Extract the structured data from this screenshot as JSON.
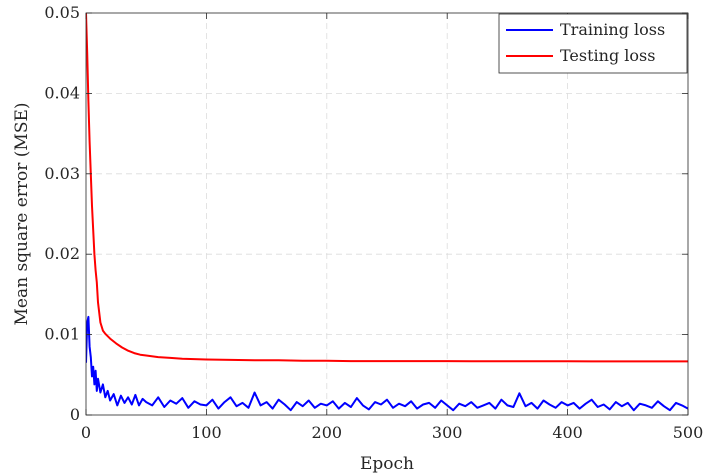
{
  "chart_data": {
    "type": "line",
    "title": "",
    "xlabel": "Epoch",
    "ylabel": "Mean square error (MSE)",
    "xlim": [
      0,
      500
    ],
    "ylim": [
      0,
      0.05
    ],
    "xticks": [
      0,
      100,
      200,
      300,
      400,
      500
    ],
    "xtick_labels": [
      "0",
      "100",
      "200",
      "300",
      "400",
      "500"
    ],
    "yticks": [
      0,
      0.01,
      0.02,
      0.03,
      0.04,
      0.05
    ],
    "ytick_labels": [
      "0",
      "0.01",
      "0.02",
      "0.03",
      "0.04",
      "0.05"
    ],
    "grid": true,
    "legend_position": "top-right",
    "series": [
      {
        "name": "Training loss",
        "color": "#0000ff",
        "x": [
          0,
          1,
          2,
          3,
          4,
          5,
          6,
          7,
          8,
          9,
          10,
          12,
          14,
          16,
          18,
          20,
          23,
          26,
          29,
          32,
          35,
          38,
          41,
          44,
          47,
          50,
          55,
          60,
          65,
          70,
          75,
          80,
          85,
          90,
          95,
          100,
          105,
          110,
          115,
          120,
          125,
          130,
          135,
          140,
          145,
          150,
          155,
          160,
          165,
          170,
          175,
          180,
          185,
          190,
          195,
          200,
          205,
          210,
          215,
          220,
          225,
          230,
          235,
          240,
          245,
          250,
          255,
          260,
          265,
          270,
          275,
          280,
          285,
          290,
          295,
          300,
          305,
          310,
          315,
          320,
          325,
          330,
          335,
          340,
          345,
          350,
          355,
          360,
          365,
          370,
          375,
          380,
          385,
          390,
          395,
          400,
          405,
          410,
          415,
          420,
          425,
          430,
          435,
          440,
          445,
          450,
          455,
          460,
          465,
          470,
          475,
          480,
          485,
          490,
          495,
          500
        ],
        "y": [
          0.0065,
          0.0115,
          0.0122,
          0.0085,
          0.0072,
          0.0048,
          0.006,
          0.0038,
          0.0055,
          0.003,
          0.0045,
          0.0028,
          0.0038,
          0.0022,
          0.003,
          0.0018,
          0.0026,
          0.0012,
          0.0024,
          0.0015,
          0.0022,
          0.0013,
          0.0025,
          0.0012,
          0.002,
          0.0016,
          0.0012,
          0.0022,
          0.001,
          0.0018,
          0.0014,
          0.0021,
          0.0009,
          0.0017,
          0.0013,
          0.0012,
          0.0019,
          0.0008,
          0.0016,
          0.0022,
          0.0011,
          0.0015,
          0.0009,
          0.0028,
          0.0012,
          0.0016,
          0.0008,
          0.0019,
          0.0013,
          0.0006,
          0.0016,
          0.0011,
          0.0018,
          0.0009,
          0.0014,
          0.0012,
          0.0017,
          0.0008,
          0.0015,
          0.001,
          0.0021,
          0.0012,
          0.0007,
          0.0016,
          0.0013,
          0.0019,
          0.0009,
          0.0014,
          0.0011,
          0.0017,
          0.0008,
          0.0013,
          0.0015,
          0.0009,
          0.0018,
          0.0012,
          0.0006,
          0.0014,
          0.0011,
          0.0016,
          0.0009,
          0.0012,
          0.0015,
          0.0008,
          0.0019,
          0.0012,
          0.001,
          0.0027,
          0.0011,
          0.0015,
          0.0008,
          0.0018,
          0.0013,
          0.0009,
          0.0016,
          0.0012,
          0.0015,
          0.0008,
          0.0014,
          0.0019,
          0.001,
          0.0013,
          0.0007,
          0.0016,
          0.0011,
          0.0015,
          0.0006,
          0.0014,
          0.0012,
          0.0009,
          0.0017,
          0.0011,
          0.0006,
          0.0015,
          0.0012,
          0.0008
        ]
      },
      {
        "name": "Testing loss",
        "color": "#ff0000",
        "x": [
          0,
          1,
          2,
          3,
          4,
          5,
          6,
          7,
          8,
          9,
          10,
          12,
          14,
          16,
          18,
          20,
          25,
          30,
          35,
          40,
          45,
          50,
          60,
          70,
          80,
          90,
          100,
          120,
          140,
          160,
          180,
          200,
          220,
          240,
          260,
          280,
          300,
          320,
          340,
          360,
          380,
          400,
          420,
          440,
          460,
          480,
          500
        ],
        "y": [
          0.05,
          0.045,
          0.039,
          0.034,
          0.03,
          0.026,
          0.023,
          0.02,
          0.018,
          0.0165,
          0.014,
          0.0115,
          0.0105,
          0.0101,
          0.0098,
          0.0095,
          0.0089,
          0.0084,
          0.008,
          0.0077,
          0.0075,
          0.0074,
          0.0072,
          0.0071,
          0.007,
          0.00695,
          0.0069,
          0.00685,
          0.0068,
          0.0068,
          0.00675,
          0.00675,
          0.0067,
          0.0067,
          0.0067,
          0.0067,
          0.0067,
          0.00668,
          0.00668,
          0.00668,
          0.00668,
          0.00668,
          0.00667,
          0.00667,
          0.00667,
          0.00667,
          0.00667
        ]
      }
    ]
  }
}
